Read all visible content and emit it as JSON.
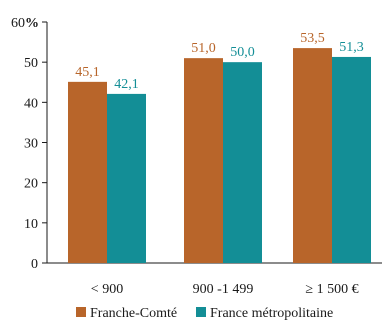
{
  "chart_data": {
    "type": "bar",
    "title": "",
    "xlabel": "",
    "ylabel": "",
    "y_unit_label": "%",
    "ylim": [
      0,
      60
    ],
    "y_ticks": [
      0,
      10,
      20,
      30,
      40,
      50,
      60
    ],
    "grid": false,
    "legend_position": "bottom",
    "categories": [
      "< 900",
      "900 -1 499",
      "≥ 1 500  €"
    ],
    "series": [
      {
        "name": "Franche-Comté",
        "color": "#b8652a",
        "values": [
          45.1,
          51.0,
          53.5
        ],
        "labels": [
          "45,1",
          "51,0",
          "53,5"
        ]
      },
      {
        "name": "France métropolitaine",
        "color": "#138e96",
        "values": [
          42.1,
          50.0,
          51.3
        ],
        "labels": [
          "42,1",
          "50,0",
          "51,3"
        ]
      }
    ]
  }
}
